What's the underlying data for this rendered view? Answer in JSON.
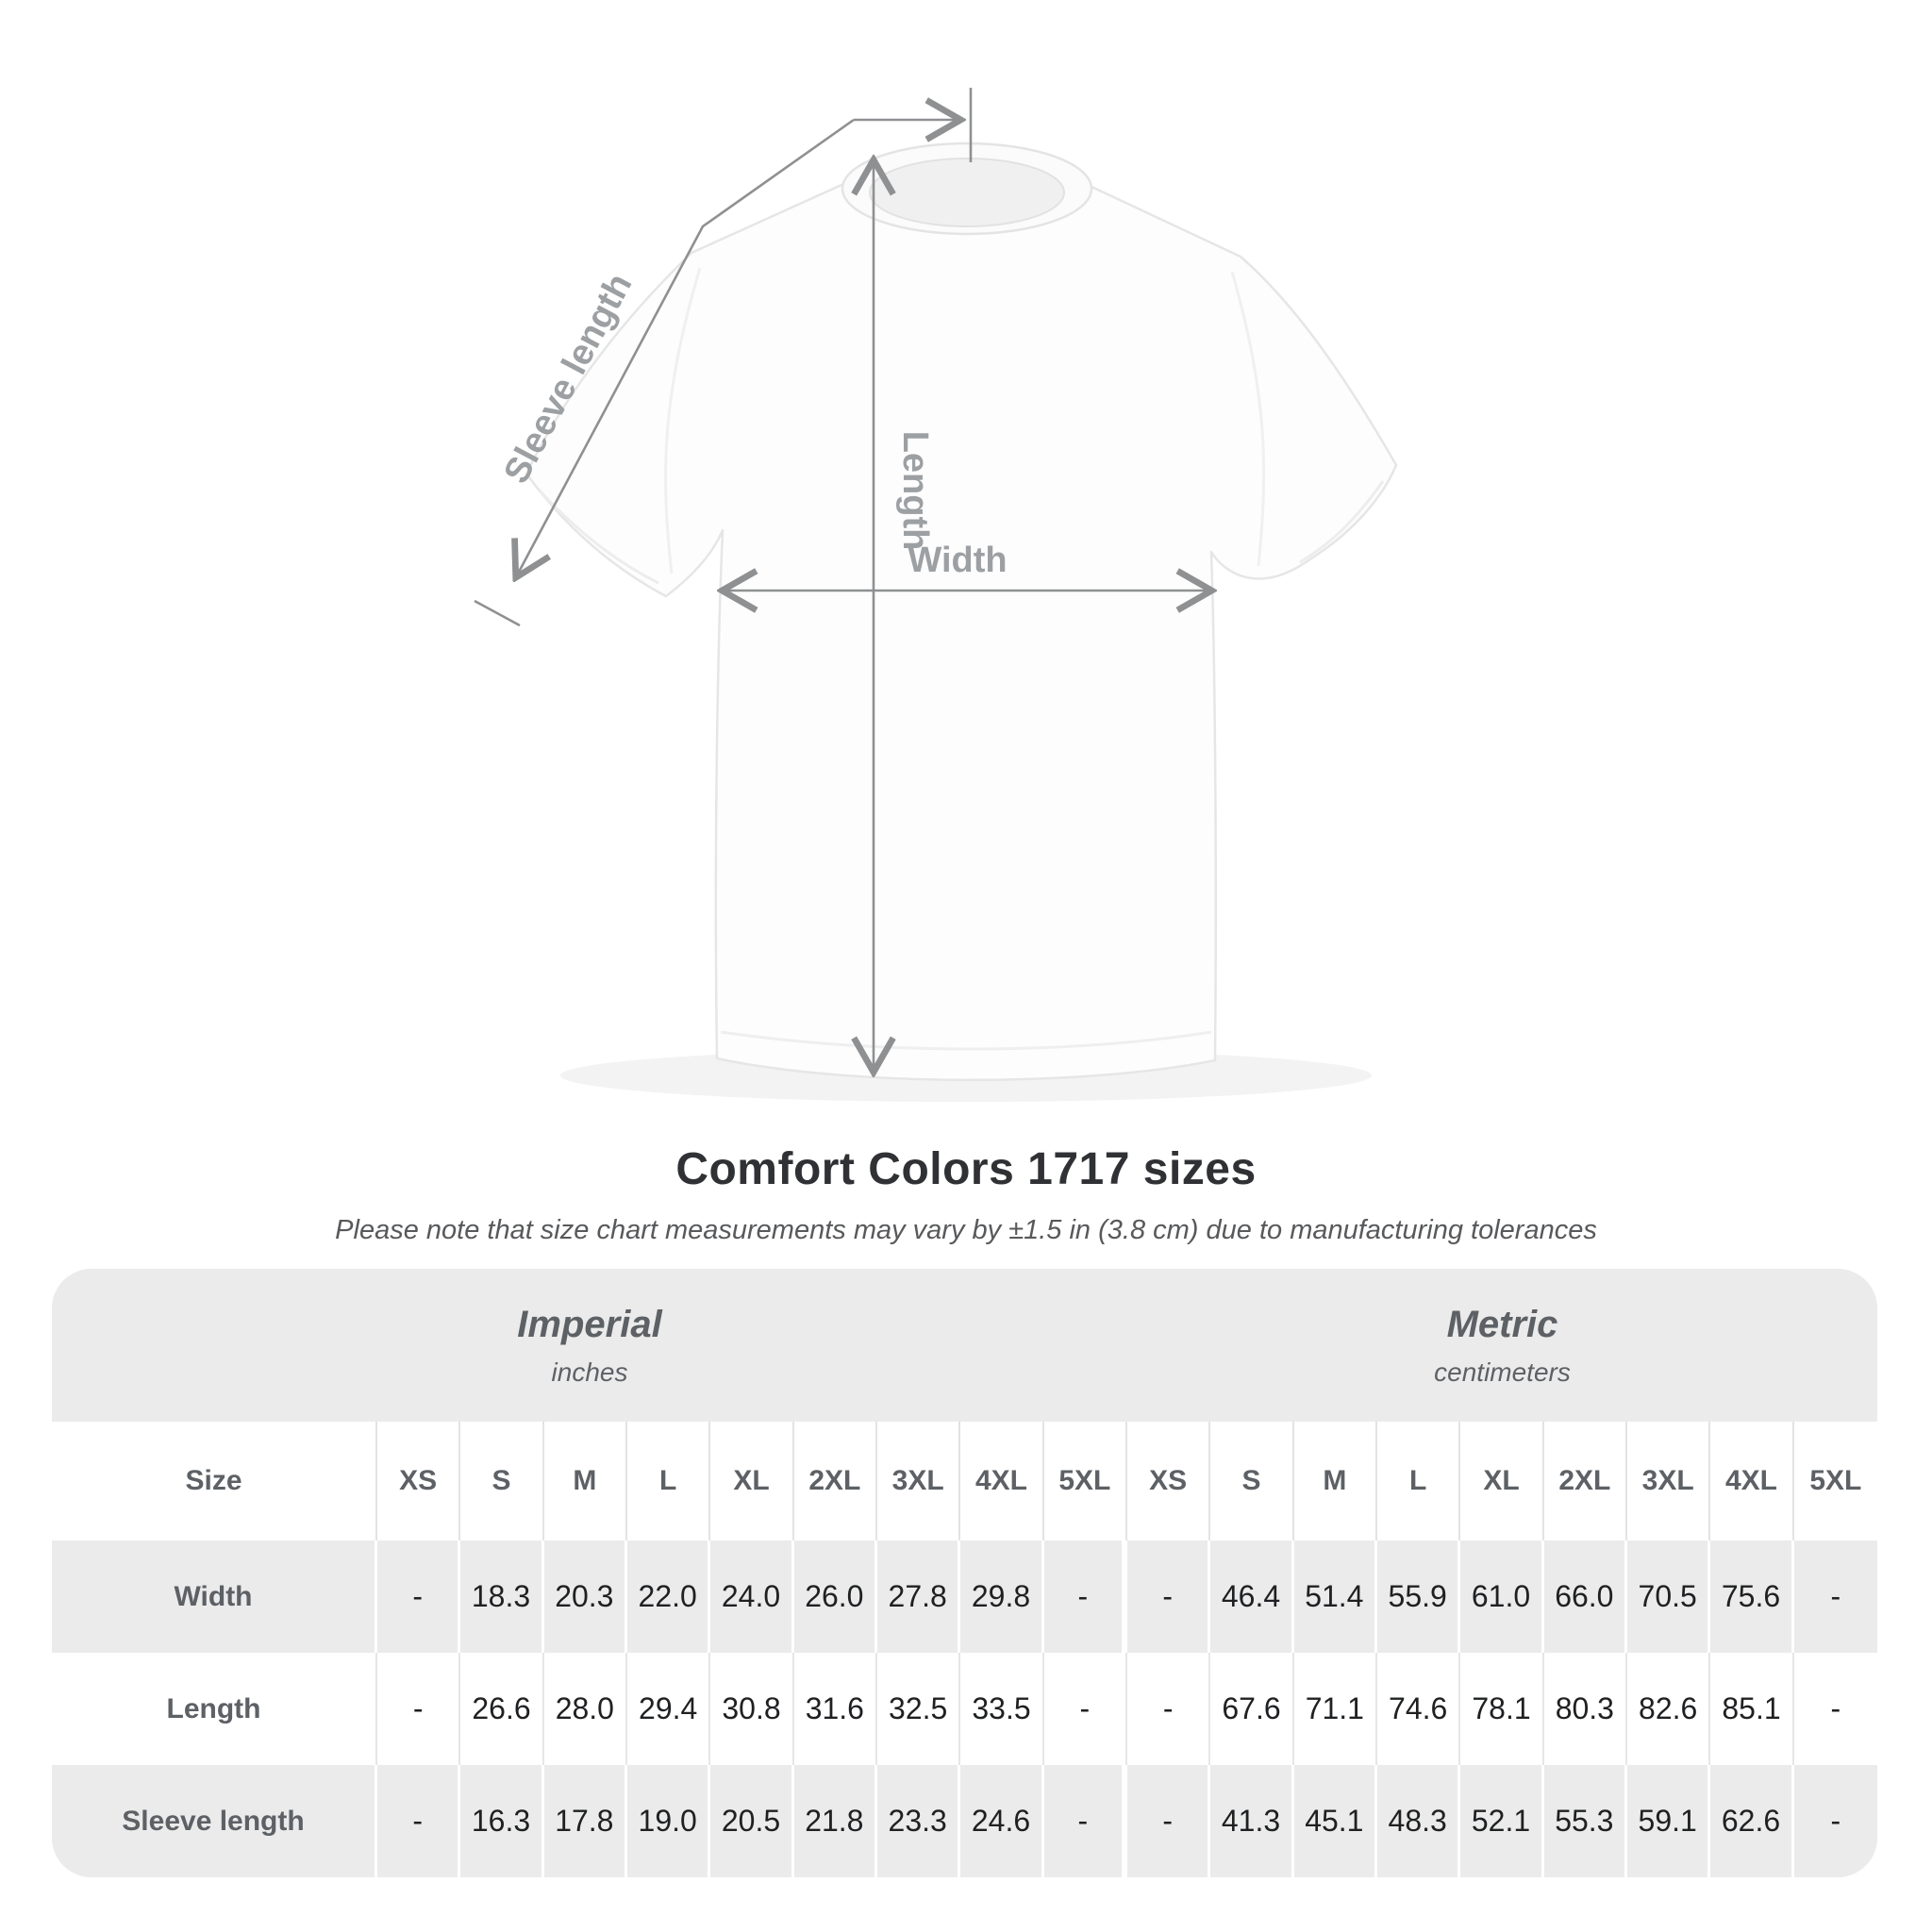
{
  "diagram": {
    "sleeve_length_label": "Sleeve length",
    "length_label": "Length",
    "width_label": "Width",
    "line_color": "#8e9092",
    "label_color": "#9da0a3"
  },
  "title": "Comfort Colors 1717 sizes",
  "subtitle": "Please note that size chart measurements may vary by ±1.5 in (3.8 cm) due to manufacturing tolerances",
  "table": {
    "imperial": {
      "label": "Imperial",
      "unit": "inches"
    },
    "metric": {
      "label": "Metric",
      "unit": "centimeters"
    },
    "size_header": "Size",
    "sizes": [
      "XS",
      "S",
      "M",
      "L",
      "XL",
      "2XL",
      "3XL",
      "4XL",
      "5XL"
    ],
    "rows": [
      {
        "label": "Width",
        "imperial": [
          "-",
          "18.3",
          "20.3",
          "22.0",
          "24.0",
          "26.0",
          "27.8",
          "29.8",
          "-"
        ],
        "metric": [
          "-",
          "46.4",
          "51.4",
          "55.9",
          "61.0",
          "66.0",
          "70.5",
          "75.6",
          "-"
        ]
      },
      {
        "label": "Length",
        "imperial": [
          "-",
          "26.6",
          "28.0",
          "29.4",
          "30.8",
          "31.6",
          "32.5",
          "33.5",
          "-"
        ],
        "metric": [
          "-",
          "67.6",
          "71.1",
          "74.6",
          "78.1",
          "80.3",
          "82.6",
          "85.1",
          "-"
        ]
      },
      {
        "label": "Sleeve length",
        "imperial": [
          "-",
          "16.3",
          "17.8",
          "19.0",
          "20.5",
          "21.8",
          "23.3",
          "24.6",
          "-"
        ],
        "metric": [
          "-",
          "41.3",
          "45.1",
          "48.3",
          "52.1",
          "55.3",
          "59.1",
          "62.6",
          "-"
        ]
      }
    ],
    "colors": {
      "band_gray": "#ebebeb",
      "row_white": "#ffffff",
      "header_text": "#5d6165",
      "value_text": "#1f2022"
    }
  },
  "chart_data": {
    "type": "table",
    "title": "Comfort Colors 1717 sizes",
    "note": "Please note that size chart measurements may vary by ±1.5 in (3.8 cm) due to manufacturing tolerances",
    "unit_groups": [
      {
        "system": "Imperial",
        "unit": "inches"
      },
      {
        "system": "Metric",
        "unit": "centimeters"
      }
    ],
    "categories": [
      "XS",
      "S",
      "M",
      "L",
      "XL",
      "2XL",
      "3XL",
      "4XL",
      "5XL"
    ],
    "series": [
      {
        "name": "Width (in)",
        "values": [
          null,
          18.3,
          20.3,
          22.0,
          24.0,
          26.0,
          27.8,
          29.8,
          null
        ]
      },
      {
        "name": "Length (in)",
        "values": [
          null,
          26.6,
          28.0,
          29.4,
          30.8,
          31.6,
          32.5,
          33.5,
          null
        ]
      },
      {
        "name": "Sleeve length (in)",
        "values": [
          null,
          16.3,
          17.8,
          19.0,
          20.5,
          21.8,
          23.3,
          24.6,
          null
        ]
      },
      {
        "name": "Width (cm)",
        "values": [
          null,
          46.4,
          51.4,
          55.9,
          61.0,
          66.0,
          70.5,
          75.6,
          null
        ]
      },
      {
        "name": "Length (cm)",
        "values": [
          null,
          67.6,
          71.1,
          74.6,
          78.1,
          80.3,
          82.6,
          85.1,
          null
        ]
      },
      {
        "name": "Sleeve length (cm)",
        "values": [
          null,
          41.3,
          45.1,
          48.3,
          52.1,
          55.3,
          59.1,
          62.6,
          null
        ]
      }
    ]
  }
}
